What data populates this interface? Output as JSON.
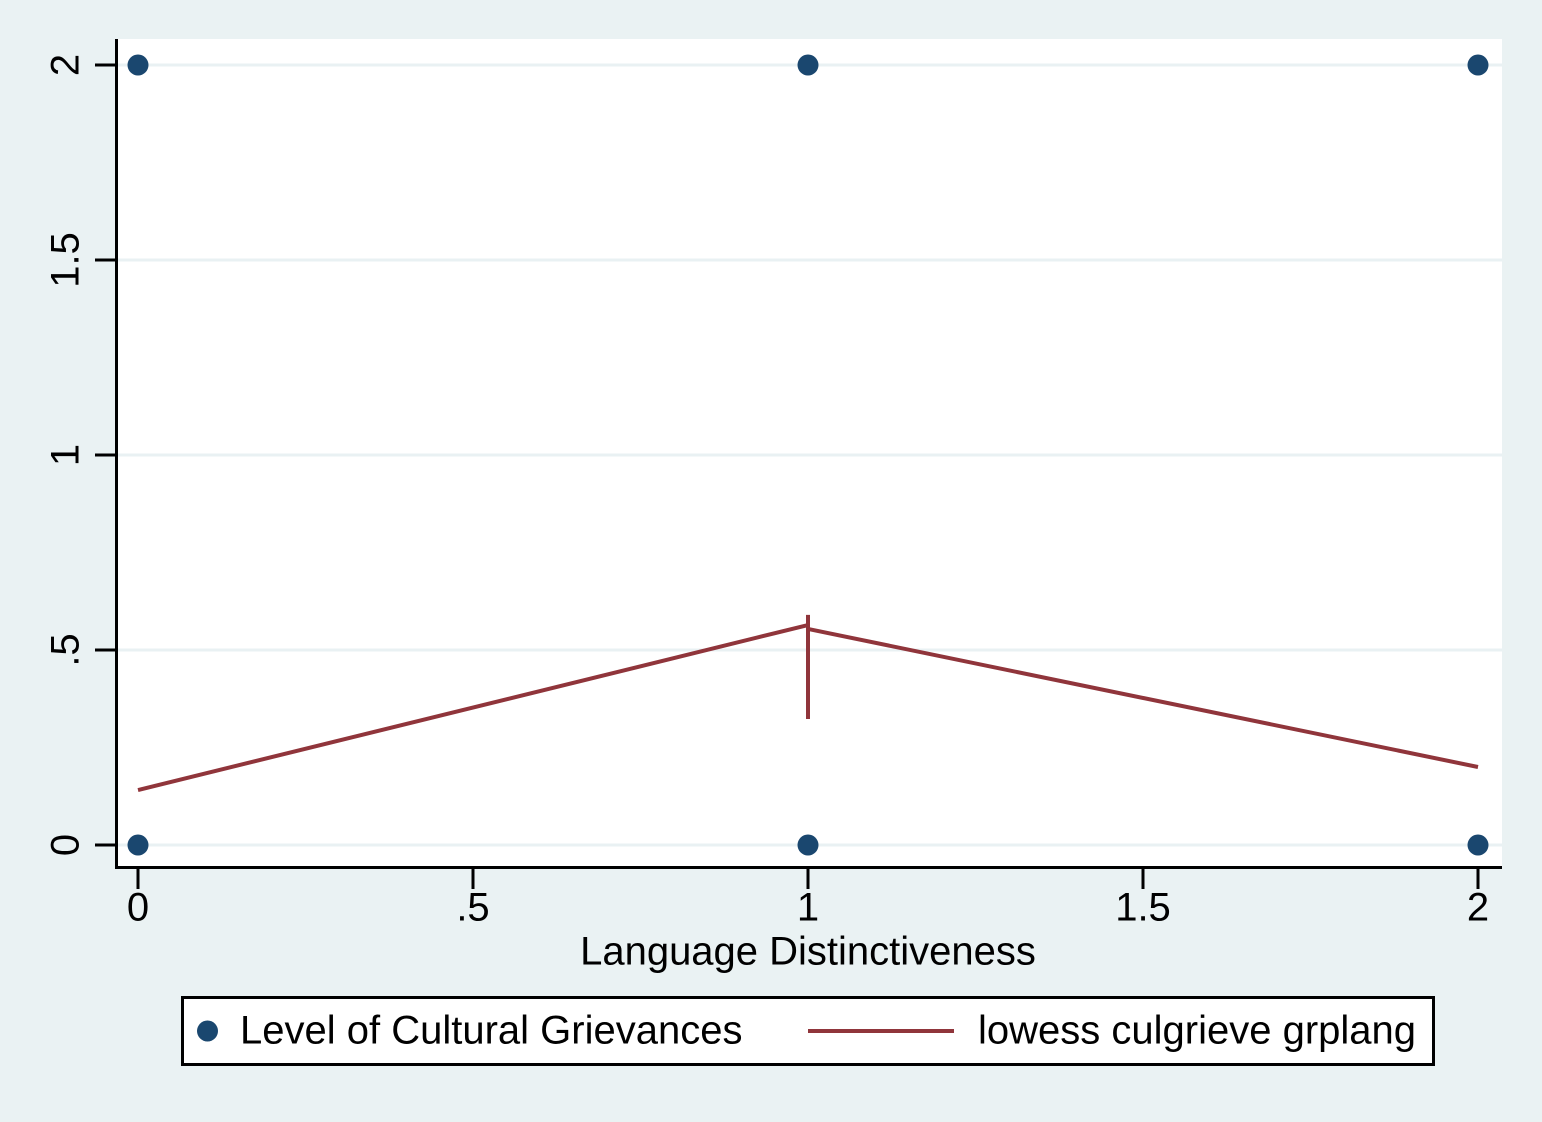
{
  "chart_data": {
    "type": "scatter",
    "xlabel": "Language Distinctiveness",
    "ylabel": "",
    "xlim": [
      0,
      2
    ],
    "ylim": [
      0,
      2
    ],
    "x_ticks": [
      {
        "value": 0,
        "label": "0"
      },
      {
        "value": 0.5,
        "label": ".5"
      },
      {
        "value": 1,
        "label": "1"
      },
      {
        "value": 1.5,
        "label": "1.5"
      },
      {
        "value": 2,
        "label": "2"
      }
    ],
    "y_ticks": [
      {
        "value": 0,
        "label": "0"
      },
      {
        "value": 0.5,
        "label": ".5"
      },
      {
        "value": 1,
        "label": "1"
      },
      {
        "value": 1.5,
        "label": "1.5"
      },
      {
        "value": 2,
        "label": "2"
      }
    ],
    "grid": "horizontal-only",
    "series": [
      {
        "name": "Level of Cultural Grievances",
        "type": "scatter",
        "color": "#1a476f",
        "points": [
          [
            0,
            0
          ],
          [
            0,
            2
          ],
          [
            1,
            0
          ],
          [
            1,
            2
          ],
          [
            2,
            0
          ],
          [
            2,
            2
          ]
        ]
      },
      {
        "name": "lowess culgrieve grplang",
        "type": "line",
        "color": "#90353b",
        "segments": [
          [
            [
              0,
              0.141
            ],
            [
              1,
              0.564
            ]
          ],
          [
            [
              1,
              0.59
            ],
            [
              1,
              0.323
            ]
          ],
          [
            [
              1,
              0.554
            ],
            [
              2,
              0.2
            ]
          ]
        ]
      }
    ],
    "legend": {
      "position": "bottom",
      "items": [
        {
          "label": "Level of Cultural Grievances",
          "marker": "dot",
          "color": "#1a476f"
        },
        {
          "label": "lowess culgrieve grplang",
          "marker": "line",
          "color": "#90353b"
        }
      ]
    }
  },
  "colors": {
    "background": "#eaf2f3",
    "plot_background": "#ffffff",
    "grid": "#e9f1f3",
    "axis": "#000000",
    "scatter": "#1a476f",
    "lowess": "#90353b",
    "legend_border": "#000000",
    "legend_background": "#ffffff"
  }
}
